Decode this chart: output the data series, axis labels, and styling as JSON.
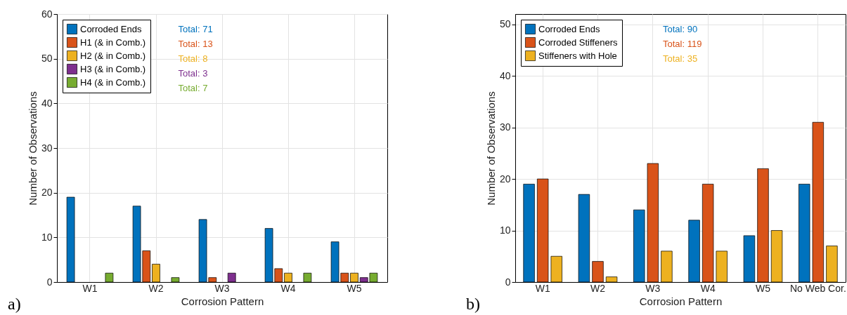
{
  "chart_data": [
    {
      "type": "bar",
      "xlabel": "Corrosion Pattern",
      "ylabel": "Number of Observations",
      "categories": [
        "W1",
        "W2",
        "W3",
        "W4",
        "W5"
      ],
      "ylim": [
        0,
        60
      ],
      "yticks": [
        0,
        10,
        20,
        30,
        40,
        50,
        60
      ],
      "grid": true,
      "legend": "top left",
      "series": [
        {
          "name": "Corroded Ends",
          "color": "#0072bd",
          "values": [
            19,
            17,
            14,
            12,
            9
          ]
        },
        {
          "name": "H1 (& in Comb.)",
          "color": "#d95319",
          "values": [
            0,
            7,
            1,
            3,
            2
          ]
        },
        {
          "name": "H2 (& in Comb.)",
          "color": "#edb120",
          "values": [
            0,
            4,
            0,
            2,
            2
          ]
        },
        {
          "name": "H3 (& in Comb.)",
          "color": "#7e2f8e",
          "values": [
            0,
            0,
            2,
            0,
            1
          ]
        },
        {
          "name": "H4 (& in Comb.)",
          "color": "#77ac30",
          "values": [
            2,
            1,
            0,
            2,
            2
          ]
        }
      ],
      "annotations": [
        "Total: 71",
        "Total: 13",
        "Total: 8",
        "Total: 3",
        "Total: 7",
        "a)"
      ]
    },
    {
      "type": "bar",
      "xlabel": "Corrosion Pattern",
      "ylabel": "Number of Observations",
      "categories": [
        "W1",
        "W2",
        "W3",
        "W4",
        "W5",
        "No Web Cor."
      ],
      "ylim": [
        0,
        52
      ],
      "yticks": [
        0,
        10,
        20,
        30,
        40,
        50
      ],
      "grid": true,
      "legend": "top left",
      "series": [
        {
          "name": "Corroded Ends",
          "color": "#0072bd",
          "values": [
            19,
            17,
            14,
            12,
            9,
            19
          ]
        },
        {
          "name": "Corroded Stiffeners",
          "color": "#d95319",
          "values": [
            20,
            4,
            23,
            19,
            22,
            31
          ]
        },
        {
          "name": "Stiffeners with Hole",
          "color": "#edb120",
          "values": [
            5,
            1,
            6,
            6,
            10,
            7
          ]
        }
      ],
      "annotations": [
        "Total: 90",
        "Total: 119",
        "Total: 35",
        "b)"
      ]
    }
  ]
}
